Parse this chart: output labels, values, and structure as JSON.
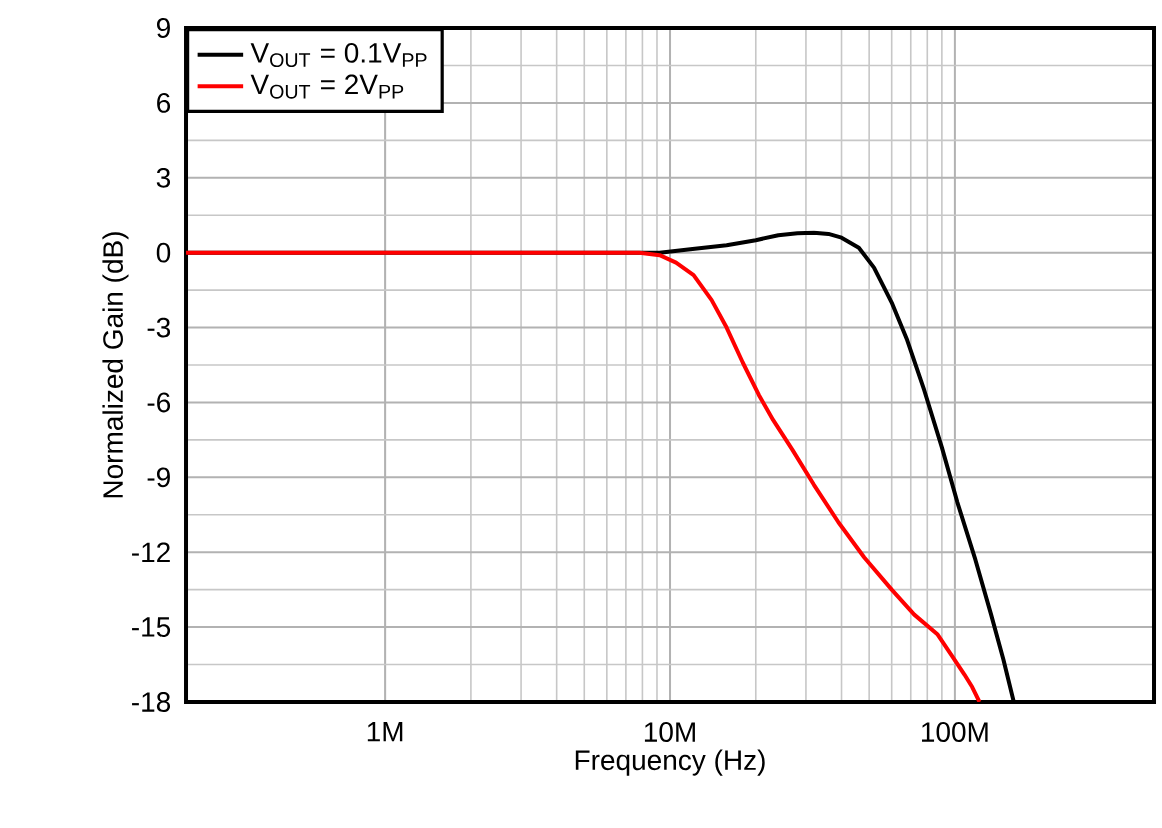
{
  "chart_data": {
    "type": "line",
    "xlabel": "Frequency (Hz)",
    "ylabel": "Normalized Gain (dB)",
    "log": "x",
    "xlim": [
      200000,
      500000000
    ],
    "xticks": [
      {
        "value": 1000000,
        "label": "1M"
      },
      {
        "value": 10000000,
        "label": "10M"
      },
      {
        "value": 100000000,
        "label": "100M"
      }
    ],
    "ylim": [
      -18,
      9
    ],
    "yticks": [
      -18,
      -15,
      -12,
      -9,
      -6,
      -3,
      0,
      3,
      6,
      9
    ],
    "grid": true,
    "legend": "top left",
    "series": [
      {
        "name": "V$_{OUT}$ = 0.1V$_{PP}$",
        "color": "#000000",
        "x": [
          200000,
          1000000,
          3000000,
          7800000,
          9200000,
          12000000,
          15800000,
          20000000,
          24000000,
          28000000,
          32000000,
          36000000,
          40000000,
          46000000,
          52000000,
          60000000,
          68000000,
          78000000,
          90000000,
          102000000,
          118000000,
          134000000,
          148000000,
          161000000
        ],
        "values": [
          0,
          0,
          0,
          0,
          0,
          0.15,
          0.3,
          0.5,
          0.7,
          0.78,
          0.8,
          0.75,
          0.6,
          0.2,
          -0.6,
          -2,
          -3.5,
          -5.5,
          -7.8,
          -10,
          -12.3,
          -14.5,
          -16.3,
          -18
        ]
      },
      {
        "name": "V$_{OUT}$ = 2V$_{PP}$",
        "color": "#ff0000",
        "x": [
          200000,
          1000000,
          3000000,
          7800000,
          9200000,
          10500000,
          12100000,
          14000000,
          15800000,
          18000000,
          20500000,
          23000000,
          26900000,
          32000000,
          39000000,
          48000000,
          60000000,
          72000000,
          87000000,
          97000000,
          108000000,
          115000000,
          122000000
        ],
        "values": [
          0,
          0,
          0,
          0,
          -0.1,
          -0.4,
          -0.9,
          -1.9,
          -3,
          -4.4,
          -5.7,
          -6.7,
          -7.9,
          -9.3,
          -10.8,
          -12.2,
          -13.5,
          -14.5,
          -15.3,
          -16.1,
          -16.9,
          -17.4,
          -18
        ]
      }
    ]
  }
}
